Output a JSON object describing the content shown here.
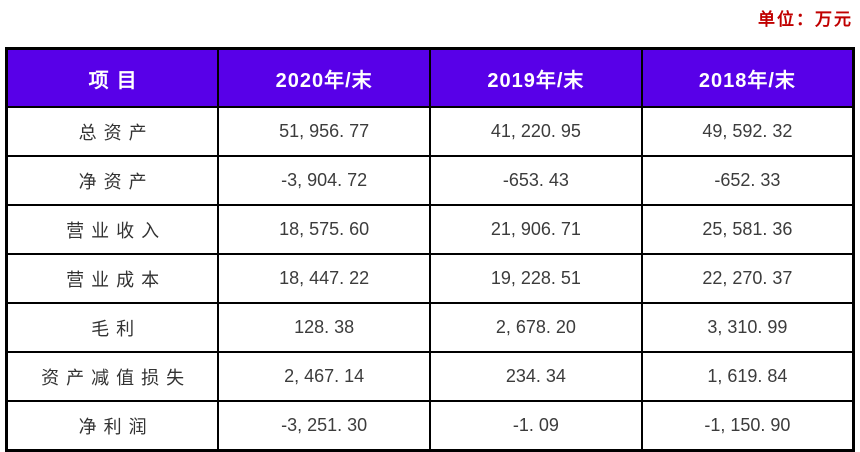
{
  "unit_label": "单位：万元",
  "table": {
    "columns": [
      "项目",
      "2020年/末",
      "2019年/末",
      "2018年/末"
    ],
    "rows": [
      {
        "label": "总资产",
        "values": [
          "51, 956. 77",
          "41, 220. 95",
          "49, 592. 32"
        ]
      },
      {
        "label": "净资产",
        "values": [
          "-3, 904. 72",
          "-653. 43",
          "-652. 33"
        ]
      },
      {
        "label": "营业收入",
        "values": [
          "18, 575. 60",
          "21, 906. 71",
          "25, 581. 36"
        ]
      },
      {
        "label": "营业成本",
        "values": [
          "18, 447. 22",
          "19, 228. 51",
          "22, 270. 37"
        ]
      },
      {
        "label": "毛利",
        "values": [
          "128. 38",
          "2, 678. 20",
          "3, 310. 99"
        ]
      },
      {
        "label": "资产减值损失",
        "values": [
          "2, 467. 14",
          "234. 34",
          "1, 619. 84"
        ]
      },
      {
        "label": "净利润",
        "values": [
          "-3, 251. 30",
          "-1. 09",
          "-1, 150. 90"
        ]
      }
    ]
  },
  "colors": {
    "header_bg": "#5800E8",
    "header_text": "#FFFFFF",
    "body_text": "#3C3C3C",
    "row_label_text": "#333333",
    "unit_text": "#C00000",
    "border": "#000000",
    "page_bg": "#FFFFFF"
  }
}
